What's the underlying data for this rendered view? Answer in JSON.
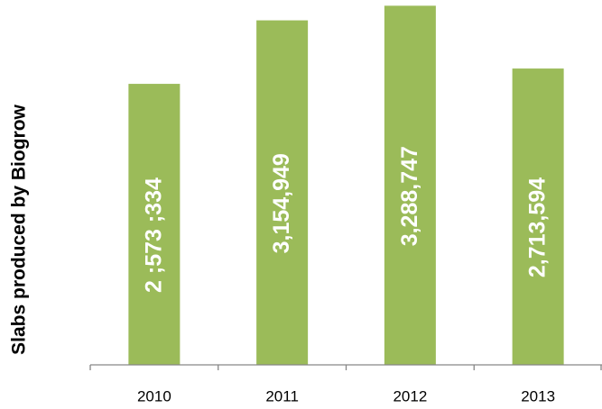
{
  "chart_data": {
    "type": "bar",
    "y_label": "Slabs produced by Biogrow",
    "categories": [
      "2010",
      "2011",
      "2012",
      "2013"
    ],
    "values": [
      2573334,
      3154949,
      3288747,
      2713594
    ],
    "value_labels": [
      "2 ;573 ;334",
      "3,154,949",
      "3,288,747",
      "2,713,594"
    ],
    "color": "#9bbb59",
    "ylim": [
      0,
      3300000
    ]
  }
}
